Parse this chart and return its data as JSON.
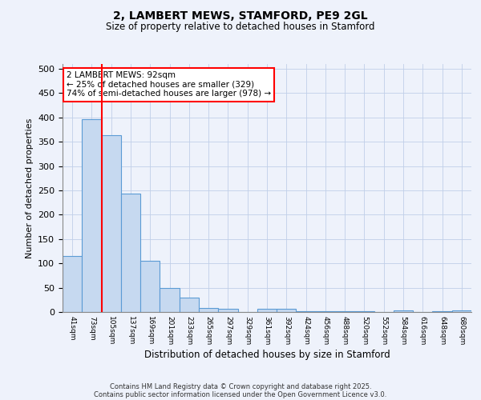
{
  "title1": "2, LAMBERT MEWS, STAMFORD, PE9 2GL",
  "title2": "Size of property relative to detached houses in Stamford",
  "xlabel": "Distribution of detached houses by size in Stamford",
  "ylabel": "Number of detached properties",
  "categories": [
    "41sqm",
    "73sqm",
    "105sqm",
    "137sqm",
    "169sqm",
    "201sqm",
    "233sqm",
    "265sqm",
    "297sqm",
    "329sqm",
    "361sqm",
    "392sqm",
    "424sqm",
    "456sqm",
    "488sqm",
    "520sqm",
    "552sqm",
    "584sqm",
    "616sqm",
    "648sqm",
    "680sqm"
  ],
  "values": [
    115,
    397,
    363,
    243,
    105,
    50,
    30,
    9,
    6,
    0,
    6,
    6,
    2,
    1,
    1,
    1,
    0,
    3,
    0,
    1,
    4
  ],
  "bar_color": "#c6d9f0",
  "bar_edge_color": "#5b9bd5",
  "vline_x": 1.5,
  "vline_color": "red",
  "ylim": [
    0,
    510
  ],
  "annotation_text": "2 LAMBERT MEWS: 92sqm\n← 25% of detached houses are smaller (329)\n74% of semi-detached houses are larger (978) →",
  "annotation_box_color": "white",
  "annotation_box_edge": "red",
  "footer1": "Contains HM Land Registry data © Crown copyright and database right 2025.",
  "footer2": "Contains public sector information licensed under the Open Government Licence v3.0.",
  "background_color": "#eef2fb",
  "grid_color": "#c0cfe8",
  "yticks": [
    0,
    50,
    100,
    150,
    200,
    250,
    300,
    350,
    400,
    450,
    500
  ]
}
